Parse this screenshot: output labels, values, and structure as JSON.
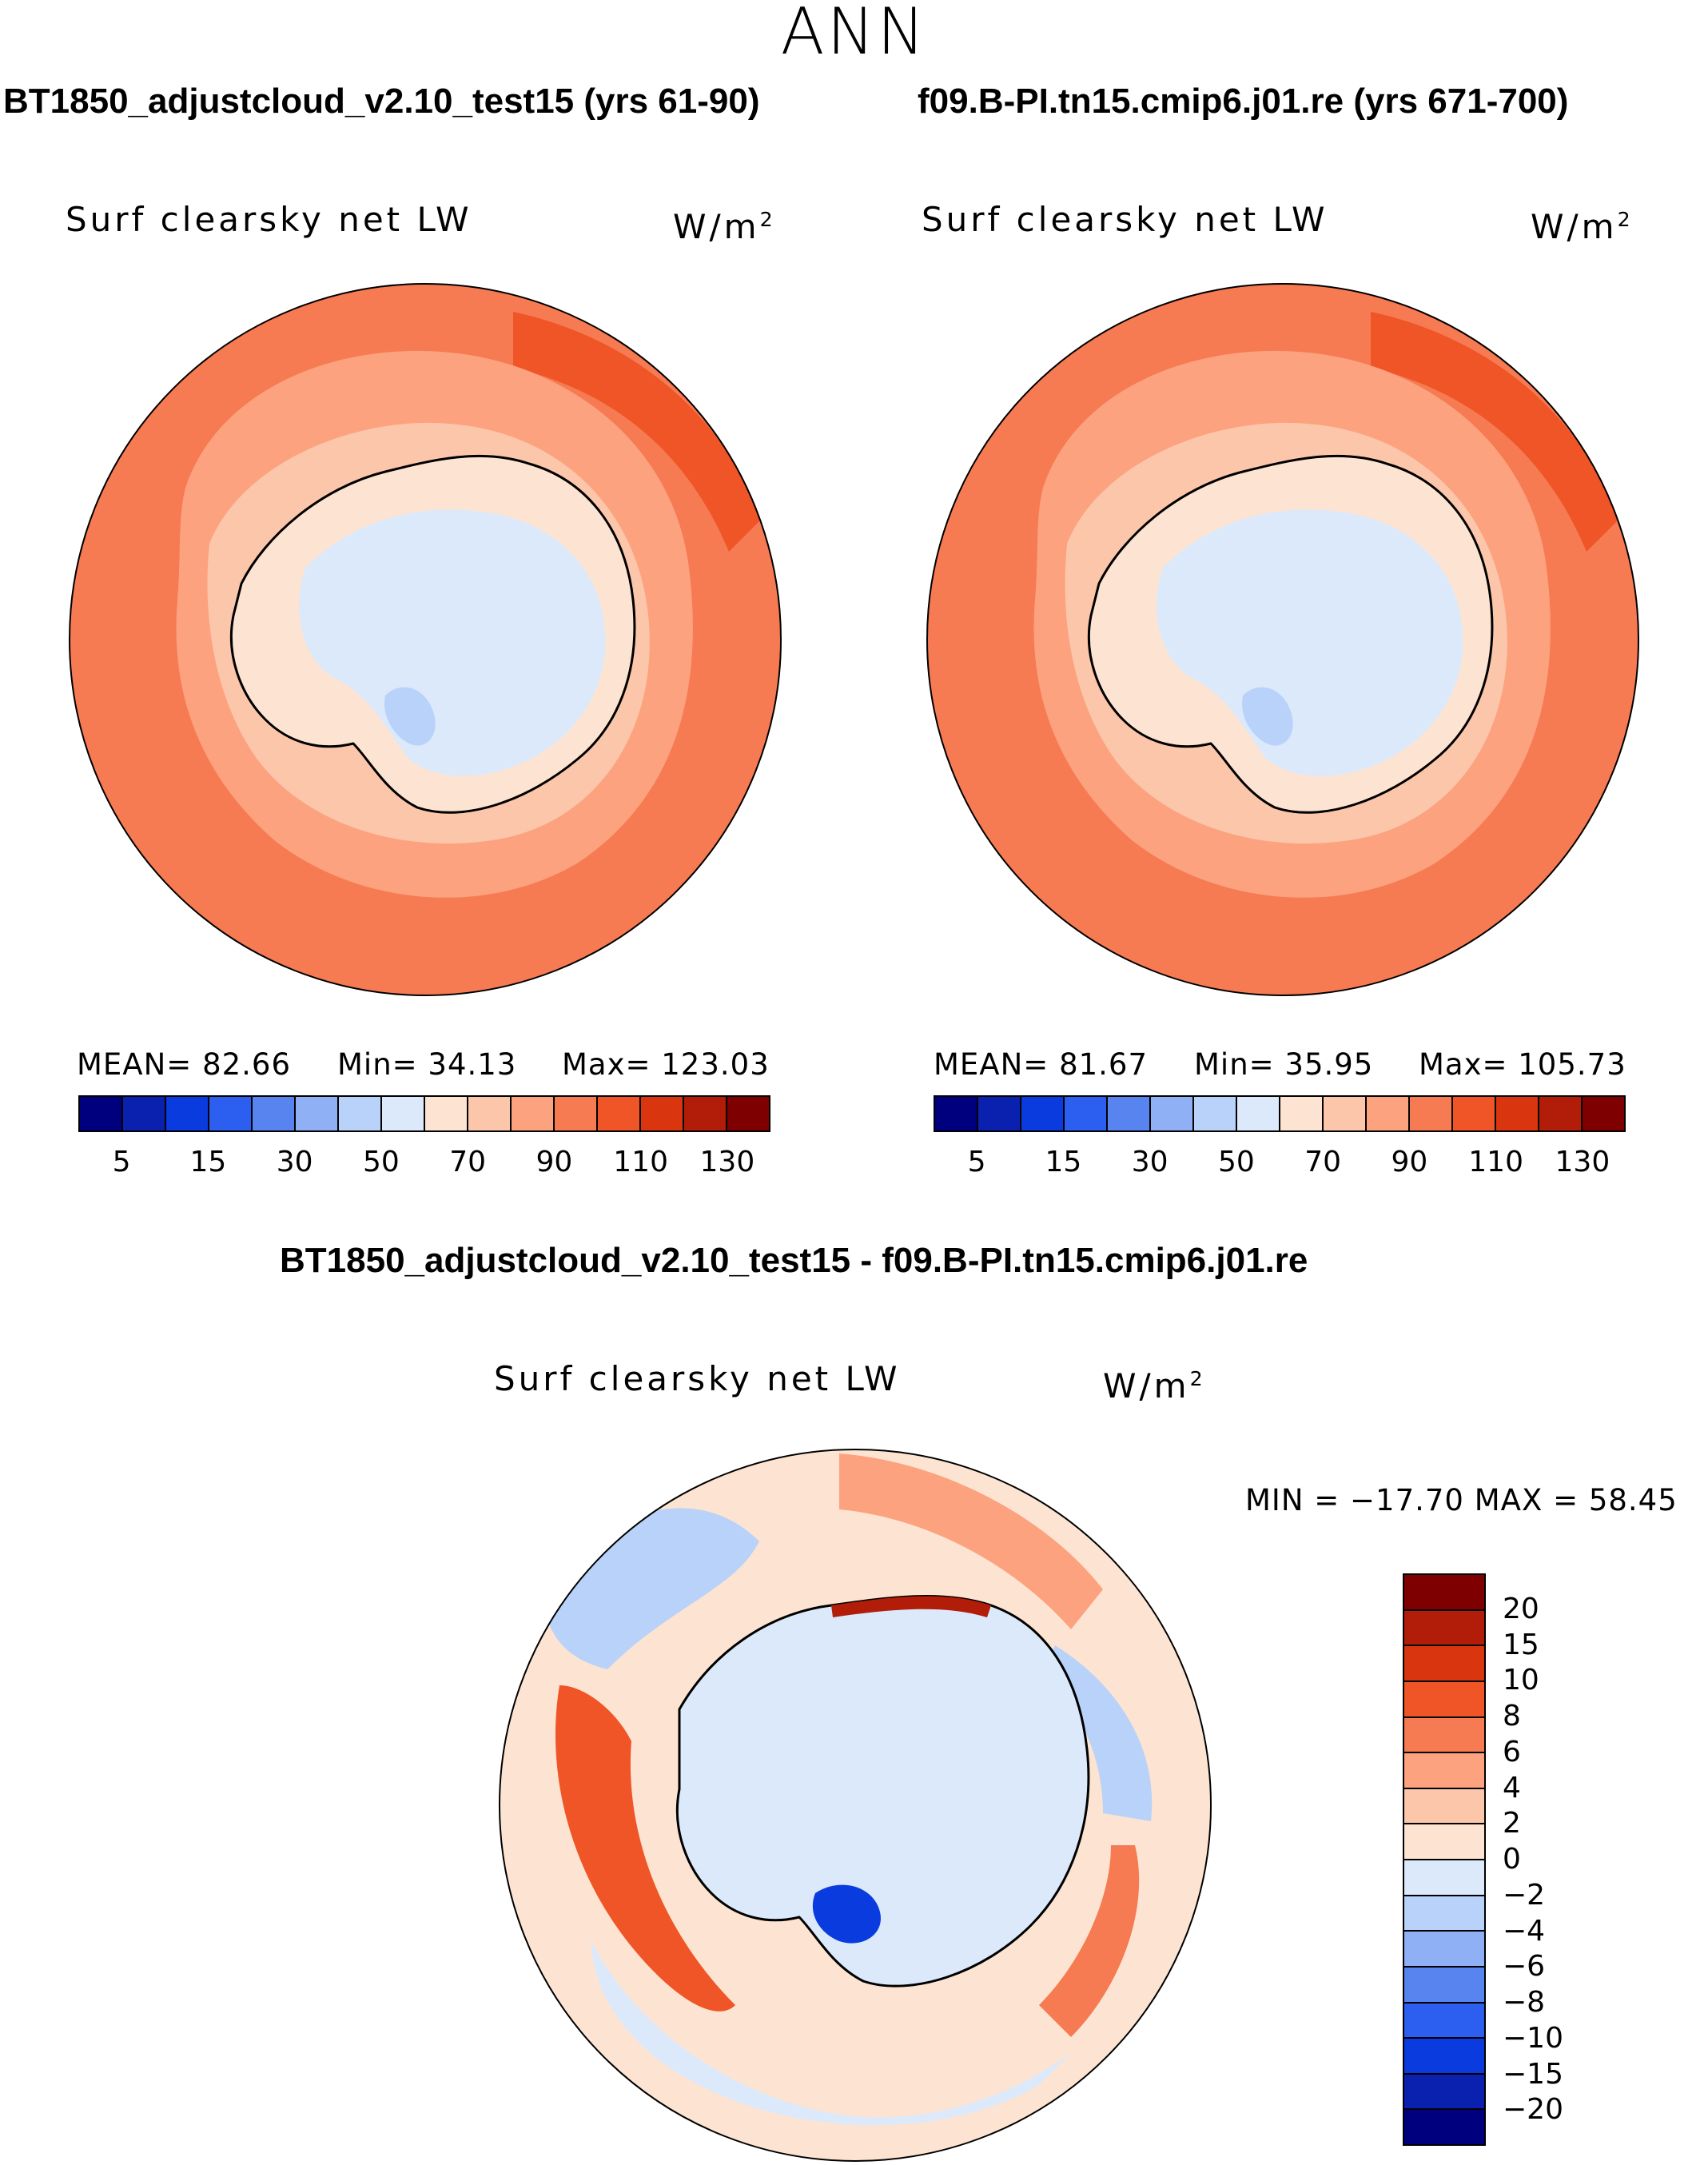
{
  "figure": {
    "title": "ANN",
    "left_panel": {
      "case": "BT1850_adjustcloud_v2.10_test15 (yrs 61-90)",
      "variable": "Surf clearsky net LW",
      "units_base": "W/m",
      "units_exp": "2",
      "mean_label": "MEAN=",
      "mean_value": "82.66",
      "min_label": "Min=",
      "min_value": "34.13",
      "max_label": "Max=",
      "max_value": "123.03"
    },
    "right_panel": {
      "case": "f09.B-PI.tn15.cmip6.j01.re (yrs 671-700)",
      "variable": "Surf clearsky net LW",
      "units_base": "W/m",
      "units_exp": "2",
      "mean_label": "MEAN=",
      "mean_value": "81.67",
      "min_label": "Min=",
      "min_value": "35.95",
      "max_label": "Max=",
      "max_value": "105.73"
    },
    "diff_panel": {
      "case": "BT1850_adjustcloud_v2.10_test15 - f09.B-PI.tn15.cmip6.j01.re",
      "variable": "Surf clearsky net LW",
      "units_base": "W/m",
      "units_exp": "2",
      "minmax_text": "MIN = −17.70 MAX =   58.45"
    }
  },
  "chart_data": [
    {
      "type": "heatmap",
      "projection": "south-polar-stereographic",
      "title": "BT1850_adjustcloud_v2.10_test15 (yrs 61-90)",
      "variable": "Surf clearsky net LW",
      "units": "W/m2",
      "mean": 82.66,
      "min": 34.13,
      "max": 123.03,
      "colorbar_ticks": [
        "5",
        "15",
        "30",
        "50",
        "70",
        "90",
        "110",
        "130"
      ],
      "colorbar_colors": [
        "#00007f",
        "#0a21b0",
        "#0a3bde",
        "#2c5ef0",
        "#5884f0",
        "#8fb0f5",
        "#b9d2f9",
        "#dbe9fb",
        "#fde4d2",
        "#fcc6ab",
        "#fca27f",
        "#f67a52",
        "#ef5526",
        "#d9360f",
        "#b11d08",
        "#7f0000"
      ],
      "regions_w_m2": {
        "open_ocean": 100,
        "midlat_band": 110,
        "sea_ice_ring": 85,
        "coastal_shelf": 75,
        "antarctic_interior": 45,
        "east_antarctic_plateau": 55
      }
    },
    {
      "type": "heatmap",
      "projection": "south-polar-stereographic",
      "title": "f09.B-PI.tn15.cmip6.j01.re (yrs 671-700)",
      "variable": "Surf clearsky net LW",
      "units": "W/m2",
      "mean": 81.67,
      "min": 35.95,
      "max": 105.73,
      "colorbar_ticks": [
        "5",
        "15",
        "30",
        "50",
        "70",
        "90",
        "110",
        "130"
      ],
      "colorbar_colors": [
        "#00007f",
        "#0a21b0",
        "#0a3bde",
        "#2c5ef0",
        "#5884f0",
        "#8fb0f5",
        "#b9d2f9",
        "#dbe9fb",
        "#fde4d2",
        "#fcc6ab",
        "#fca27f",
        "#f67a52",
        "#ef5526",
        "#d9360f",
        "#b11d08",
        "#7f0000"
      ],
      "regions_w_m2": {
        "open_ocean": 100,
        "midlat_band": 110,
        "sea_ice_ring": 85,
        "coastal_shelf": 75,
        "antarctic_interior": 45,
        "east_antarctic_plateau": 55
      }
    },
    {
      "type": "heatmap",
      "projection": "south-polar-stereographic",
      "title": "BT1850_adjustcloud_v2.10_test15 - f09.B-PI.tn15.cmip6.j01.re",
      "variable": "Surf clearsky net LW",
      "units": "W/m2",
      "min": -17.7,
      "max": 58.45,
      "colorbar_ticks": [
        "20",
        "15",
        "10",
        "8",
        "6",
        "4",
        "2",
        "0",
        "−2",
        "−4",
        "−6",
        "−8",
        "−10",
        "−15",
        "−20"
      ],
      "colorbar_colors": [
        "#7f0000",
        "#b11d08",
        "#d9360f",
        "#ef5526",
        "#f67a52",
        "#fca27f",
        "#fcc6ab",
        "#fde4d2",
        "#dbe9fb",
        "#b9d2f9",
        "#8fb0f5",
        "#5884f0",
        "#2c5ef0",
        "#0a3bde",
        "#0a21b0",
        "#00007f"
      ],
      "regions_w_m2": {
        "background": 1,
        "interior": 0.5,
        "pacific_band": 5,
        "indian_band": 4,
        "weddell_negative": -3,
        "ross_negative": -8,
        "coastal_positive": 15
      }
    }
  ]
}
